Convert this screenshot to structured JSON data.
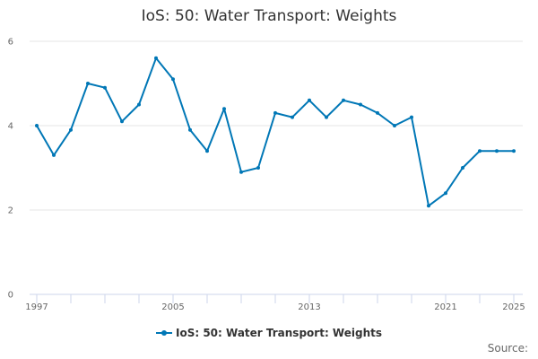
{
  "chart_data": {
    "type": "line",
    "title": "IoS: 50: Water Transport: Weights",
    "x": [
      1997,
      1998,
      1999,
      2000,
      2001,
      2002,
      2003,
      2004,
      2005,
      2006,
      2007,
      2008,
      2009,
      2010,
      2011,
      2012,
      2013,
      2014,
      2015,
      2016,
      2017,
      2018,
      2019,
      2020,
      2021,
      2022,
      2023,
      2024,
      2025
    ],
    "series": [
      {
        "name": "IoS: 50: Water Transport: Weights",
        "values": [
          4.0,
          3.3,
          3.9,
          5.0,
          4.9,
          4.1,
          4.5,
          5.6,
          5.1,
          3.9,
          3.4,
          4.4,
          2.9,
          3.0,
          4.3,
          4.2,
          4.6,
          4.2,
          4.6,
          4.5,
          4.3,
          4.0,
          4.2,
          2.1,
          2.4,
          3.0,
          3.4,
          3.4,
          3.4
        ]
      }
    ],
    "xlabel": "",
    "ylabel": "",
    "x_tick_labels": [
      "1997",
      "2005",
      "2013",
      "2021",
      "2025"
    ],
    "y_ticks": [
      0,
      2,
      4,
      6
    ],
    "ylim": [
      0,
      6
    ],
    "grid": true,
    "legend": "bottom-center",
    "color": "#0077b6"
  },
  "credits": "Source:"
}
